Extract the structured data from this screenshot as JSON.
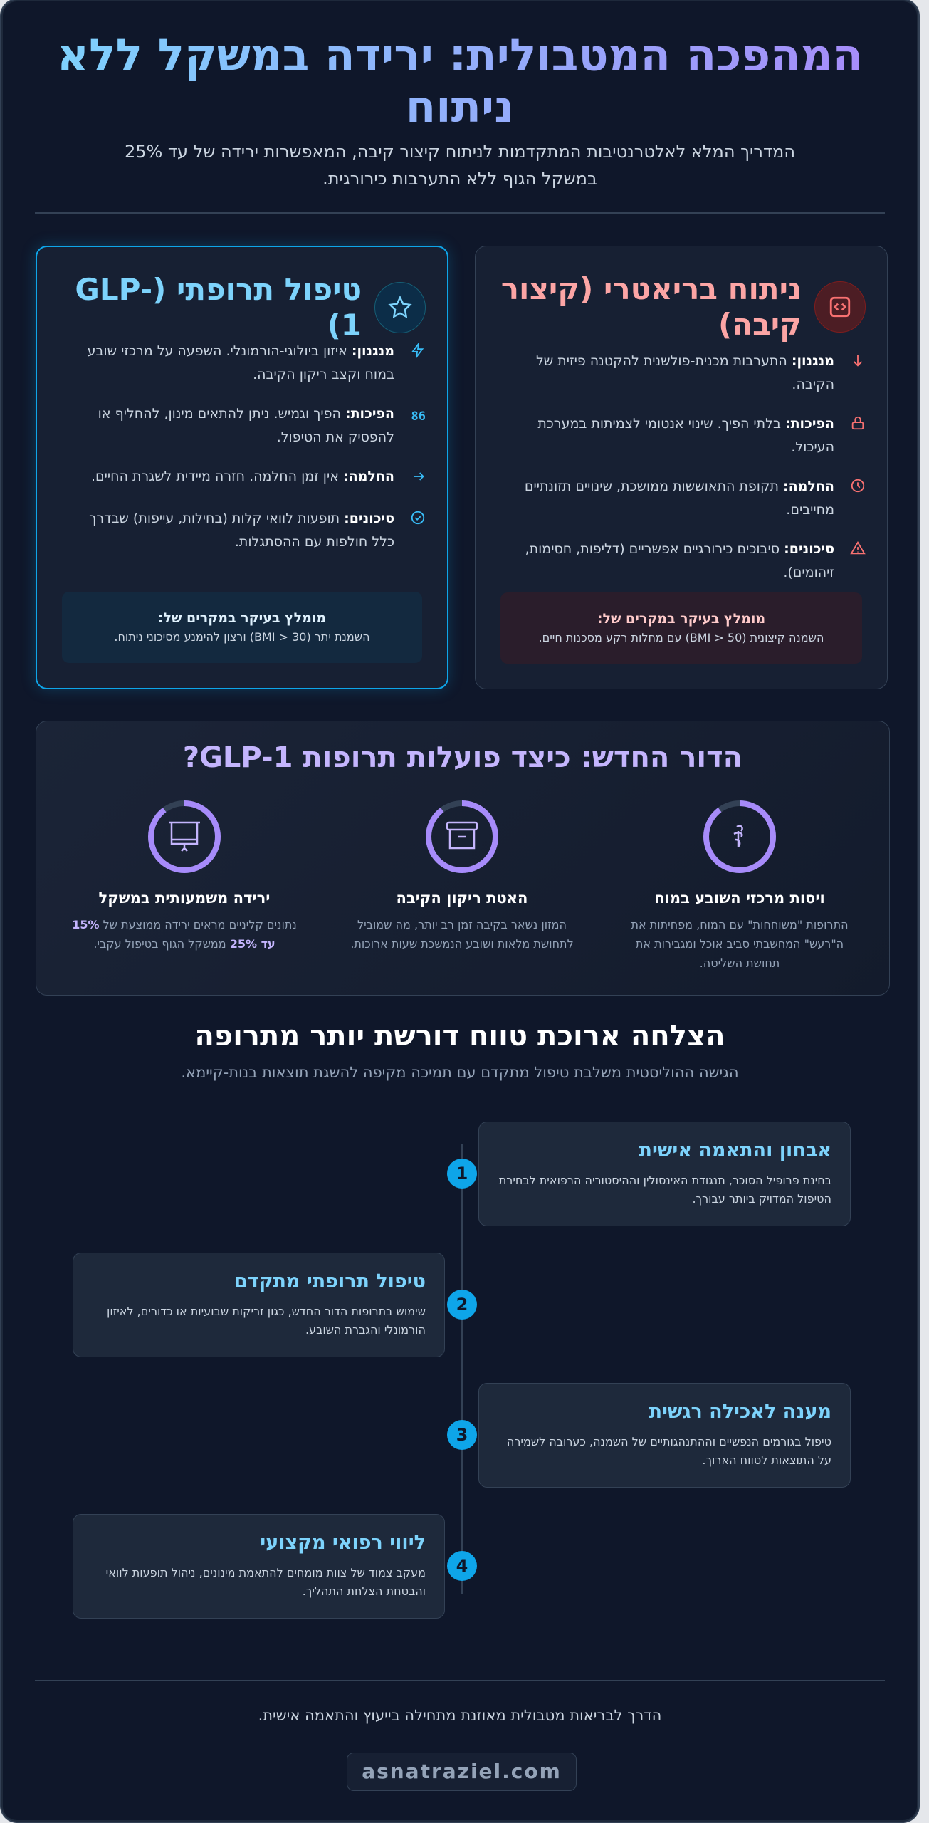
{
  "header": {
    "title": "המהפכה המטבולית: ירידה במשקל ללא ניתוח",
    "subtitle": "המדריך המלא לאלטרנטיבות המתקדמות לניתוח קיצור קיבה, המאפשרות ירידה של עד 25% במשקל הגוף ללא התערבות כירורגית."
  },
  "surgery": {
    "title": "ניתוח בריאטרי (קיצור קיבה)",
    "icon": "code-square-icon",
    "items": [
      {
        "icon": "arrow-down-icon",
        "label": "מנגנון:",
        "text": "התערבות מכנית-פולשנית להקטנה פיזית של הקיבה."
      },
      {
        "icon": "lock-icon",
        "label": "הפיכות:",
        "text": "בלתי הפיך. שינוי אנטומי לצמיתות במערכת העיכול."
      },
      {
        "icon": "clock-icon",
        "label": "החלמה:",
        "text": "תקופת התאוששות ממושכת, שינויים תזונתיים מחייבים."
      },
      {
        "icon": "warning-icon",
        "label": "סיכונים:",
        "text": "סיבוכים כירורגיים אפשריים (דליפות, חסימות, זיהומים)."
      }
    ],
    "rec_title": "מומלץ בעיקר במקרים של:",
    "rec_text": "השמנה קיצונית (BMI > 50) עם מחלות רקע מסכנות חיים.",
    "color": "#fca5a5"
  },
  "glp": {
    "title": "טיפול תרופתי (GLP-1)",
    "icon": "star-icon",
    "items": [
      {
        "icon": "lightning-icon",
        "label": "מנגנון:",
        "text": "איזון ביולוגי-הורמונלי. השפעה על מרכזי שובע במוח וקצב ריקון הקיבה."
      },
      {
        "icon": "digits-icon",
        "label": "הפיכות:",
        "text": "הפיך וגמיש. ניתן להתאים מינון, להחליף או להפסיק את הטיפול."
      },
      {
        "icon": "arrow-right-icon",
        "label": "החלמה:",
        "text": "אין זמן החלמה. חזרה מיידית לשגרת החיים."
      },
      {
        "icon": "check-circle-icon",
        "label": "סיכונים:",
        "text": "תופעות לוואי קלות (בחילות, עייפות) שבדרך כלל חולפות עם ההסתגלות."
      }
    ],
    "rec_title": "מומלץ בעיקר במקרים של:",
    "rec_text": "השמנת יתר (BMI > 30) ורצון להימנע מסיכוני ניתוח.",
    "color": "#7dd3fc"
  },
  "mechanism": {
    "title": "הדור החדש: כיצד פועלות תרופות GLP-1?",
    "cols": [
      {
        "icon": "brain-icon",
        "title": "ויסות מרכזי השובע במוח",
        "text": "התרופות \"משוחחות\" עם המוח, מפחיתות את ה\"רעש\" המחשבתי סביב אוכל ומגבירות את תחושת השליטה."
      },
      {
        "icon": "container-icon",
        "title": "האטת ריקון הקיבה",
        "text": "המזון נשאר בקיבה זמן רב יותר, מה שמוביל לתחושת מלאות ושובע הנמשכת שעות ארוכות."
      },
      {
        "icon": "presentation-icon",
        "title": "ירידה משמעותית במשקל",
        "text_a": "נתונים קליניים מראים ירידה ממוצעת של ",
        "hl1": "15%",
        "text_b": " ",
        "hl2": "עד 25%",
        "text_c": " ממשקל הגוף בטיפול עקבי."
      }
    ],
    "accent": "#a78bfa"
  },
  "program": {
    "title": "הצלחה ארוכת טווח דורשת יותר מתרופה",
    "subtitle": "הגישה ההוליסטית משלבת טיפול מתקדם עם תמיכה מקיפה להשגת תוצאות בנות-קיימא.",
    "steps": [
      {
        "num": "1",
        "title": "אבחון והתאמה אישית",
        "text": "בחינת פרופיל הסוכר, תנגודת האינסולין וההיסטוריה הרפואית לבחירת הטיפול המדויק ביותר עבורך."
      },
      {
        "num": "2",
        "title": "טיפול תרופתי מתקדם",
        "text": "שימוש בתרופות הדור החדש, כגון זריקות שבועיות או כדורים, לאיזון הורמונלי והגברת השובע."
      },
      {
        "num": "3",
        "title": "מענה לאכילה רגשית",
        "text": "טיפול בגורמים הנפשיים וההתנהגותיים של השמנה, כערובה לשמירה על התוצאות לטווח הארוך."
      },
      {
        "num": "4",
        "title": "ליווי רפואי מקצועי",
        "text": "מעקב צמוד של צוות מומחים להתאמת מינונים, ניהול תופעות לוואי והבטחת הצלחת התהליך."
      }
    ]
  },
  "footer": {
    "text": "הדרך לבריאות מטבולית מאוזנת מתחילה בייעוץ והתאמה אישית.",
    "site": "asnatraziel.com"
  }
}
